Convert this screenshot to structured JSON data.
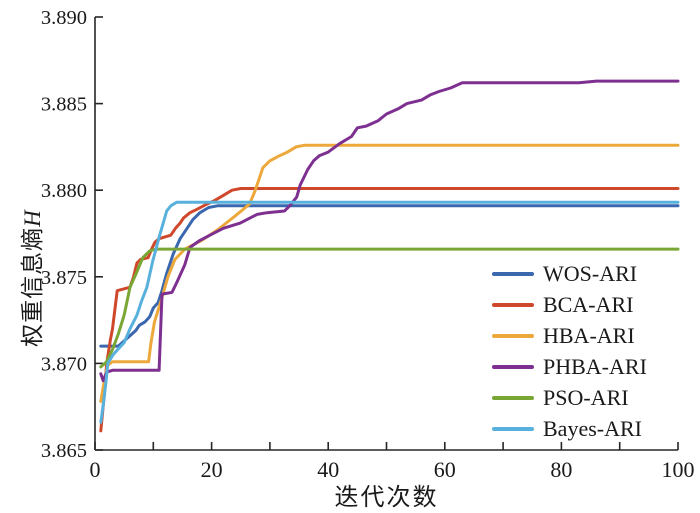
{
  "figure": {
    "background": "#ffffff",
    "axis_color": "#262626",
    "text_color": "#1a1a1a"
  },
  "chart_data": {
    "type": "line",
    "title": "",
    "xlabel": "迭代次数",
    "ylabel": "权重信息熵H",
    "ylabel_cjk": "权重信息熵",
    "ylabel_var": "H",
    "xlim": [
      0,
      100
    ],
    "ylim": [
      3.865,
      3.89
    ],
    "xticks": [
      0,
      20,
      40,
      60,
      80,
      100
    ],
    "xticks_minor": [
      10,
      30,
      50,
      70,
      90
    ],
    "ytick_labels": [
      "3.865",
      "3.870",
      "3.875",
      "3.880",
      "3.885",
      "3.890"
    ],
    "yticks": [
      3.865,
      3.87,
      3.875,
      3.88,
      3.885,
      3.89
    ],
    "grid": false,
    "legend_position": "lower right",
    "series": [
      {
        "name": "WOS-ARI",
        "color": "#3A67AE",
        "final_value": 3.8791,
        "points": [
          [
            1,
            3.871
          ],
          [
            4,
            3.871
          ],
          [
            5,
            3.8713
          ],
          [
            6,
            3.8716
          ],
          [
            7,
            3.8719
          ],
          [
            7.6,
            3.8722
          ],
          [
            8.6,
            3.8724
          ],
          [
            9.4,
            3.8727
          ],
          [
            10,
            3.8732
          ],
          [
            10.8,
            3.8735
          ],
          [
            11.4,
            3.8741
          ],
          [
            12.3,
            3.8752
          ],
          [
            13.4,
            3.8763
          ],
          [
            14.6,
            3.8772
          ],
          [
            15.8,
            3.8778
          ],
          [
            16.8,
            3.8783
          ],
          [
            18,
            3.8787
          ],
          [
            19.5,
            3.879
          ],
          [
            21,
            3.8791
          ],
          [
            100,
            3.8791
          ]
        ]
      },
      {
        "name": "BCA-ARI",
        "color": "#D0482B",
        "final_value": 3.8801,
        "points": [
          [
            1,
            3.8661
          ],
          [
            1.6,
            3.8682
          ],
          [
            2,
            3.87
          ],
          [
            2.6,
            3.8713
          ],
          [
            3,
            3.872
          ],
          [
            3.8,
            3.8742
          ],
          [
            6,
            3.8744
          ],
          [
            6.6,
            3.875
          ],
          [
            7.2,
            3.8758
          ],
          [
            7.8,
            3.876
          ],
          [
            9.1,
            3.8761
          ],
          [
            9.7,
            3.8766
          ],
          [
            10.3,
            3.877
          ],
          [
            11,
            3.8772
          ],
          [
            13,
            3.8774
          ],
          [
            13.8,
            3.8778
          ],
          [
            14.6,
            3.8781
          ],
          [
            15.2,
            3.8784
          ],
          [
            16.3,
            3.8787
          ],
          [
            17.5,
            3.8789
          ],
          [
            19.2,
            3.8792
          ],
          [
            20.5,
            3.8794
          ],
          [
            22,
            3.8797
          ],
          [
            23.5,
            3.88
          ],
          [
            25,
            3.8801
          ],
          [
            100,
            3.8801
          ]
        ]
      },
      {
        "name": "HBA-ARI",
        "color": "#ECA83B",
        "final_value": 3.8826,
        "points": [
          [
            1,
            3.8678
          ],
          [
            1.6,
            3.869
          ],
          [
            2.2,
            3.8699
          ],
          [
            3,
            3.8701
          ],
          [
            9.2,
            3.8701
          ],
          [
            9.6,
            3.8712
          ],
          [
            10.2,
            3.8724
          ],
          [
            11.4,
            3.8737
          ],
          [
            12.5,
            3.875
          ],
          [
            13.7,
            3.876
          ],
          [
            15.4,
            3.8766
          ],
          [
            18.3,
            3.8771
          ],
          [
            21,
            3.8777
          ],
          [
            24,
            3.8785
          ],
          [
            26.5,
            3.8792
          ],
          [
            27.5,
            3.88
          ],
          [
            28.8,
            3.8813
          ],
          [
            30,
            3.8817
          ],
          [
            31.7,
            3.882
          ],
          [
            33,
            3.8822
          ],
          [
            34.5,
            3.8825
          ],
          [
            36,
            3.8826
          ],
          [
            100,
            3.8826
          ]
        ]
      },
      {
        "name": "PHBA-ARI",
        "color": "#7E3090",
        "final_value": 3.8863,
        "points": [
          [
            1,
            3.8694
          ],
          [
            1.4,
            3.869
          ],
          [
            2,
            3.8695
          ],
          [
            3,
            3.8696
          ],
          [
            11,
            3.8696
          ],
          [
            11.5,
            3.874
          ],
          [
            13.2,
            3.8741
          ],
          [
            14.2,
            3.8748
          ],
          [
            15.4,
            3.8757
          ],
          [
            16.3,
            3.8767
          ],
          [
            18,
            3.8771
          ],
          [
            19.7,
            3.8774
          ],
          [
            22,
            3.8778
          ],
          [
            24.9,
            3.8781
          ],
          [
            27.8,
            3.8786
          ],
          [
            29.5,
            3.8787
          ],
          [
            32.5,
            3.8788
          ],
          [
            33.4,
            3.8791
          ],
          [
            34.6,
            3.8796
          ],
          [
            35.2,
            3.8803
          ],
          [
            36.5,
            3.8812
          ],
          [
            37.5,
            3.8817
          ],
          [
            38.5,
            3.882
          ],
          [
            40,
            3.8822
          ],
          [
            42,
            3.8827
          ],
          [
            44,
            3.8831
          ],
          [
            45,
            3.8836
          ],
          [
            46.5,
            3.8837
          ],
          [
            48.5,
            3.884
          ],
          [
            50,
            3.8844
          ],
          [
            52,
            3.8847
          ],
          [
            53.5,
            3.885
          ],
          [
            56,
            3.8852
          ],
          [
            57.5,
            3.8855
          ],
          [
            59,
            3.8857
          ],
          [
            61,
            3.8859
          ],
          [
            63,
            3.8862
          ],
          [
            83,
            3.8862
          ],
          [
            86,
            3.8863
          ],
          [
            100,
            3.8863
          ]
        ]
      },
      {
        "name": "PSO-ARI",
        "color": "#79A634",
        "final_value": 3.8766,
        "points": [
          [
            1,
            3.8698
          ],
          [
            2,
            3.8701
          ],
          [
            3,
            3.8708
          ],
          [
            4,
            3.8717
          ],
          [
            5,
            3.8728
          ],
          [
            6,
            3.8744
          ],
          [
            7.2,
            3.8753
          ],
          [
            8.2,
            3.8761
          ],
          [
            9.4,
            3.8765
          ],
          [
            10.5,
            3.8766
          ],
          [
            100,
            3.8766
          ]
        ]
      },
      {
        "name": "Bayes-ARI",
        "color": "#58B1DC",
        "final_value": 3.8793,
        "points": [
          [
            1,
            3.8666
          ],
          [
            1.5,
            3.8678
          ],
          [
            1.9,
            3.869
          ],
          [
            2.2,
            3.87
          ],
          [
            3.1,
            3.8705
          ],
          [
            3.9,
            3.8708
          ],
          [
            5,
            3.8712
          ],
          [
            6,
            3.872
          ],
          [
            7.2,
            3.8728
          ],
          [
            8,
            3.8736
          ],
          [
            8.9,
            3.8744
          ],
          [
            9.9,
            3.8759
          ],
          [
            11.1,
            3.8774
          ],
          [
            12.3,
            3.8788
          ],
          [
            13,
            3.8791
          ],
          [
            14,
            3.8793
          ],
          [
            100,
            3.8793
          ]
        ]
      }
    ]
  }
}
